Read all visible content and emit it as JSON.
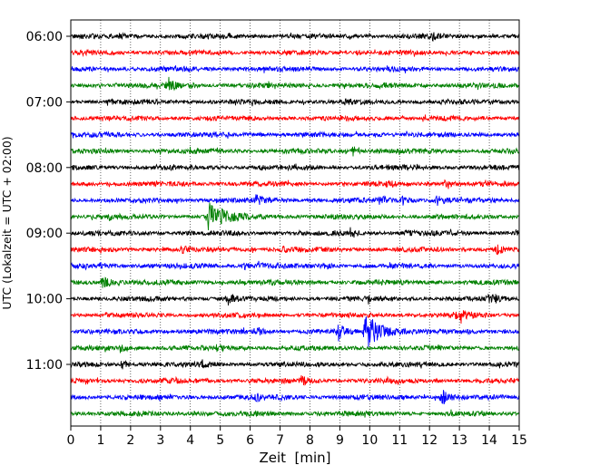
{
  "chart_data": {
    "type": "line",
    "xlabel": "Zeit  [min]",
    "ylabel": "UTC (Lokalzeit = UTC + 02:00)",
    "xlim": [
      0,
      15
    ],
    "x_ticks": [
      "0",
      "1",
      "2",
      "3",
      "4",
      "5",
      "6",
      "7",
      "8",
      "9",
      "10",
      "11",
      "12",
      "13",
      "14",
      "15"
    ],
    "y_tick_labels": [
      "06:00",
      "07:00",
      "08:00",
      "09:00",
      "10:00",
      "11:00"
    ],
    "grid": "vertical-dotted",
    "row_interval_minutes": 15,
    "colors": [
      "#000000",
      "#ff0000",
      "#0000ff",
      "#008000"
    ],
    "rows": [
      {
        "start": "06:00",
        "events": [
          {
            "t": 1.6,
            "a": 0.2
          },
          {
            "t": 5.3,
            "a": 0.15
          },
          {
            "t": 12.1,
            "a": 0.3
          }
        ]
      },
      {
        "start": "06:15",
        "events": [
          {
            "t": 9.6,
            "a": 0.25
          }
        ]
      },
      {
        "start": "06:30",
        "events": []
      },
      {
        "start": "06:45",
        "events": [
          {
            "t": 3.25,
            "a": 0.9
          },
          {
            "t": 4.0,
            "a": 0.2
          },
          {
            "t": 10.4,
            "a": 0.2
          }
        ]
      },
      {
        "start": "07:00",
        "events": [
          {
            "t": 1.3,
            "a": 0.2
          },
          {
            "t": 9.2,
            "a": 0.25
          }
        ]
      },
      {
        "start": "07:15",
        "events": []
      },
      {
        "start": "07:30",
        "events": [
          {
            "t": 10.2,
            "a": 0.2
          }
        ]
      },
      {
        "start": "07:45",
        "events": [
          {
            "t": 9.45,
            "a": 0.6
          },
          {
            "t": 14.6,
            "a": 0.25
          }
        ]
      },
      {
        "start": "08:00",
        "events": [
          {
            "t": 6.3,
            "a": 0.15
          }
        ]
      },
      {
        "start": "08:15",
        "events": [
          {
            "t": 10.6,
            "a": 0.2
          },
          {
            "t": 12.5,
            "a": 0.55
          }
        ]
      },
      {
        "start": "08:30",
        "events": [
          {
            "t": 6.2,
            "a": 0.5
          },
          {
            "t": 10.35,
            "a": 0.45
          },
          {
            "t": 11.1,
            "a": 0.45
          },
          {
            "t": 12.25,
            "a": 0.65
          }
        ]
      },
      {
        "start": "08:45",
        "events": [
          {
            "t": 1.25,
            "a": 0.35
          },
          {
            "t": 4.6,
            "a": 1.8
          }
        ]
      },
      {
        "start": "09:00",
        "events": [
          {
            "t": 9.35,
            "a": 0.6
          },
          {
            "t": 11.2,
            "a": 0.3
          }
        ]
      },
      {
        "start": "09:15",
        "events": [
          {
            "t": 3.7,
            "a": 0.3
          },
          {
            "t": 7.1,
            "a": 0.25
          },
          {
            "t": 14.25,
            "a": 0.55
          }
        ]
      },
      {
        "start": "09:30",
        "events": [
          {
            "t": 1.0,
            "a": 0.35
          },
          {
            "t": 5.8,
            "a": 0.35
          },
          {
            "t": 6.3,
            "a": 0.55
          },
          {
            "t": 8.5,
            "a": 0.3
          }
        ]
      },
      {
        "start": "09:45",
        "events": [
          {
            "t": 1.05,
            "a": 1.2
          }
        ]
      },
      {
        "start": "10:00",
        "events": [
          {
            "t": 5.25,
            "a": 0.7
          },
          {
            "t": 9.95,
            "a": 0.4
          },
          {
            "t": 14.05,
            "a": 0.7
          }
        ]
      },
      {
        "start": "10:15",
        "events": [
          {
            "t": 12.8,
            "a": 0.3
          },
          {
            "t": 13.05,
            "a": 0.75
          }
        ]
      },
      {
        "start": "10:30",
        "events": [
          {
            "t": 6.25,
            "a": 0.45
          },
          {
            "t": 8.95,
            "a": 1.0
          },
          {
            "t": 9.85,
            "a": 2.4
          }
        ]
      },
      {
        "start": "10:45",
        "events": [
          {
            "t": 1.65,
            "a": 0.4
          },
          {
            "t": 4.9,
            "a": 0.3
          }
        ]
      },
      {
        "start": "11:00",
        "events": [
          {
            "t": 1.7,
            "a": 0.5
          },
          {
            "t": 4.4,
            "a": 0.35
          }
        ]
      },
      {
        "start": "11:15",
        "events": [
          {
            "t": 7.7,
            "a": 0.55
          },
          {
            "t": 10.8,
            "a": 0.25
          }
        ]
      },
      {
        "start": "11:30",
        "events": [
          {
            "t": 6.2,
            "a": 0.3
          },
          {
            "t": 12.4,
            "a": 1.1
          }
        ]
      },
      {
        "start": "11:45",
        "events": [
          {
            "t": 4.1,
            "a": 0.2
          }
        ]
      }
    ]
  }
}
